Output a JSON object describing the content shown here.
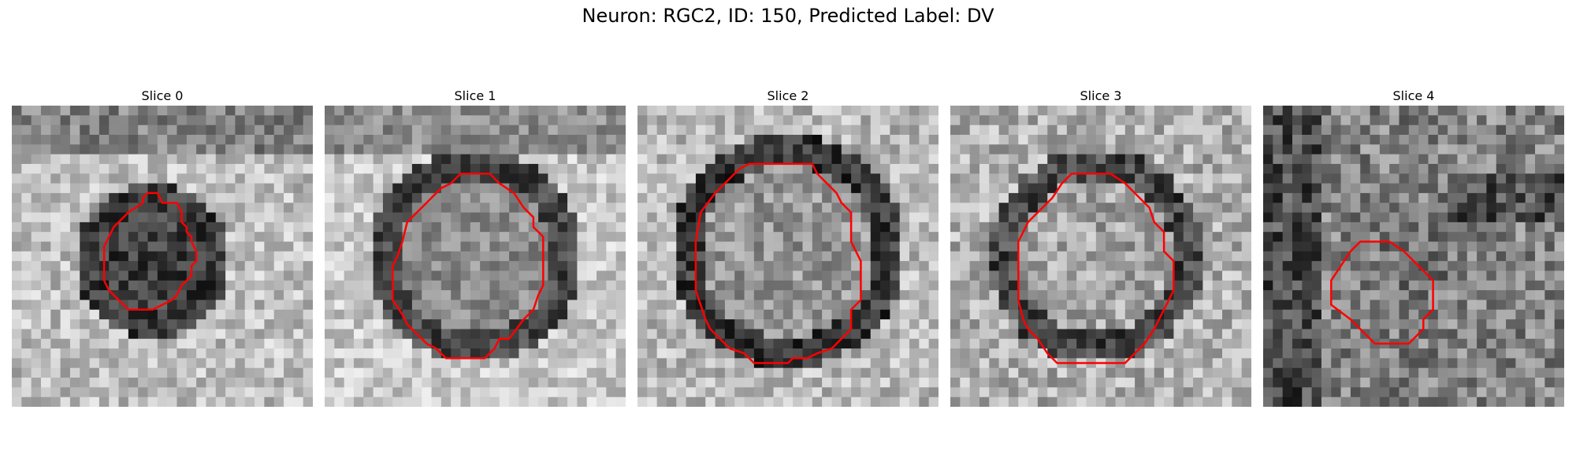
{
  "figure_title": "Neuron: RGC2, ID: 150, Predicted Label: DV",
  "overlay_color": "#ff0000",
  "panels": [
    {
      "title": "Slice 0"
    },
    {
      "title": "Slice 1"
    },
    {
      "title": "Slice 2"
    },
    {
      "title": "Slice 3"
    },
    {
      "title": "Slice 4"
    }
  ]
}
